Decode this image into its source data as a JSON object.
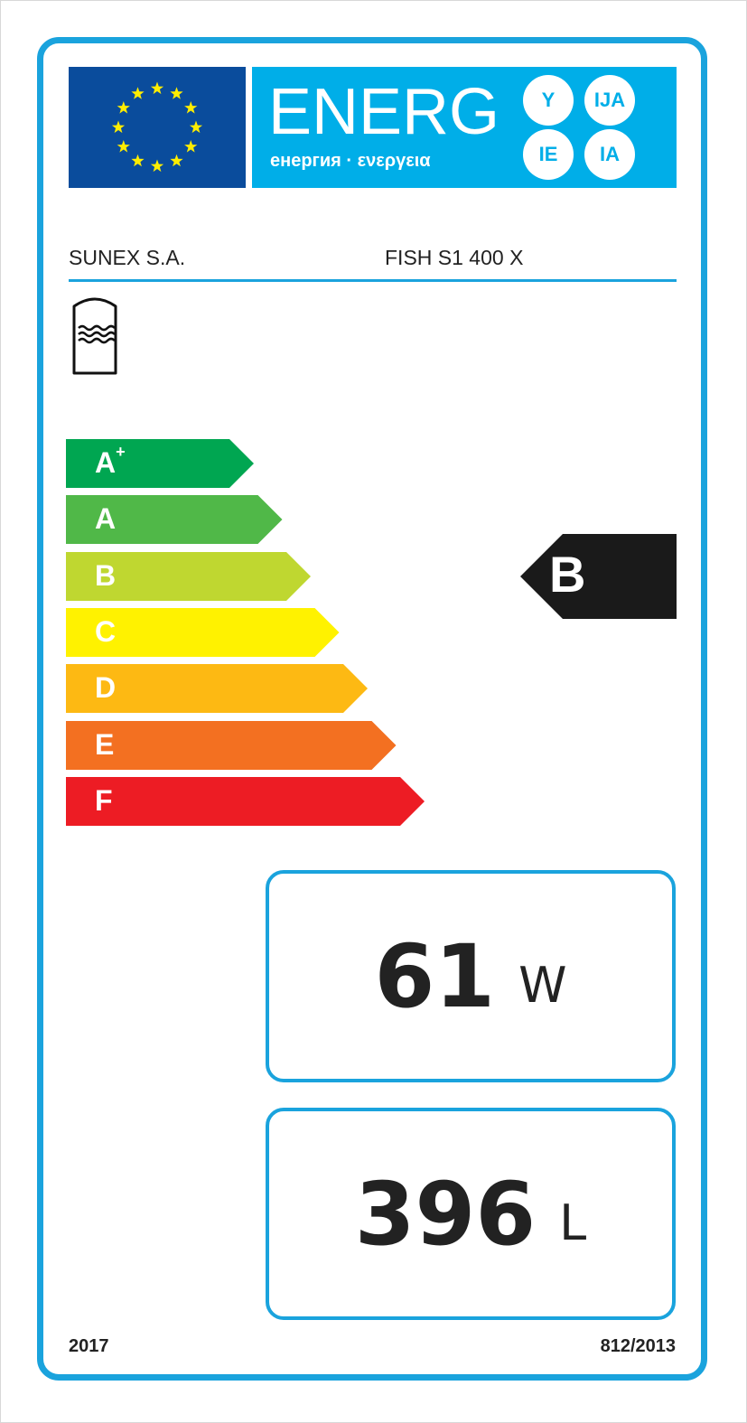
{
  "header": {
    "energy_word": "ENERG",
    "energy_subtitle": "енергия · ενεργεια",
    "suffixes": [
      "Y",
      "IJA",
      "IE",
      "IA"
    ],
    "flag_icon": "eu-flag-icon"
  },
  "supplier": "SUNEX S.A.",
  "model": "FISH S1 400 X",
  "appliance_icon": "hot-water-storage-tank-icon",
  "scale": [
    {
      "label": "A",
      "sup": "+",
      "color": "#00a651"
    },
    {
      "label": "A",
      "sup": "",
      "color": "#50b848"
    },
    {
      "label": "B",
      "sup": "",
      "color": "#bfd730"
    },
    {
      "label": "C",
      "sup": "",
      "color": "#fff200"
    },
    {
      "label": "D",
      "sup": "",
      "color": "#fdb913"
    },
    {
      "label": "E",
      "sup": "",
      "color": "#f37021"
    },
    {
      "label": "F",
      "sup": "",
      "color": "#ed1c24"
    }
  ],
  "energy_class": "B",
  "standing_loss": {
    "value": "61",
    "unit": "W"
  },
  "volume": {
    "value": "396",
    "unit": "L"
  },
  "footer": {
    "year": "2017",
    "regulation": "812/2013"
  },
  "colors": {
    "frame": "#1aa3dd",
    "flag": "#0a4c9c",
    "energy_panel": "#00aee8",
    "class_arrow": "#1a1a1a"
  }
}
